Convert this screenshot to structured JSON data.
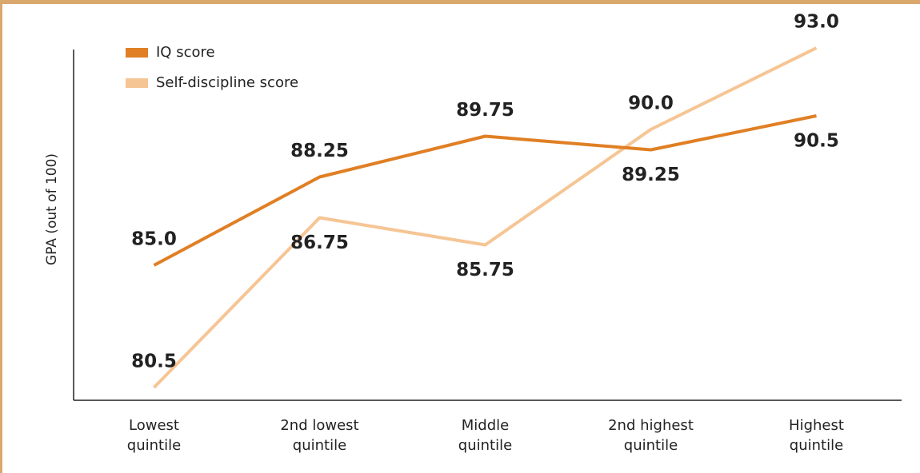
{
  "chart_data": {
    "type": "line",
    "y_label": "GPA (out of 100)",
    "categories": [
      "Lowest\nquintile",
      "2nd lowest\nquintile",
      "Middle\nquintile",
      "2nd highest\nquintile",
      "Highest\nquintile"
    ],
    "series": [
      {
        "name": "IQ score",
        "color": "#e07f24",
        "values": [
          85.0,
          88.25,
          89.75,
          89.25,
          90.5
        ],
        "value_labels": [
          "85.0",
          "88.25",
          "89.75",
          "89.25",
          "90.5"
        ]
      },
      {
        "name": "Self-discipline score",
        "color": "#f6c594",
        "values": [
          80.5,
          86.75,
          85.75,
          90.0,
          93.0
        ],
        "value_labels": [
          "80.5",
          "86.75",
          "85.75",
          "90.0",
          "93.0"
        ]
      }
    ],
    "ylim": [
      80,
      93
    ]
  }
}
